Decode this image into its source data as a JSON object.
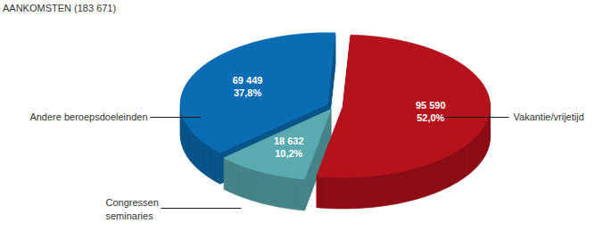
{
  "chart_data": {
    "type": "pie",
    "title": "AANKOMSTEN (183 671)",
    "categories": [
      "Vakantie/vrijetijd",
      "Congressen\nseminaries",
      "Andere beroepsdoeleinden"
    ],
    "values": [
      95590,
      18632,
      69449
    ],
    "value_labels": [
      "95 590",
      "18 632",
      "69 449"
    ],
    "percent": [
      52.0,
      10.2,
      37.8
    ],
    "percent_labels": [
      "52,0%",
      "10,2%",
      "37,8%"
    ],
    "colors": [
      "#b5121b",
      "#5aaab0",
      "#0a6db3"
    ],
    "data_labels": true
  }
}
